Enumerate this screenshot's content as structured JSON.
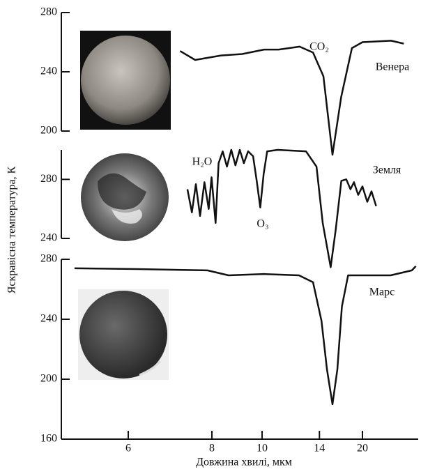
{
  "chart_data": [
    {
      "type": "line",
      "ylim": [
        200,
        280
      ],
      "yticks": [
        200,
        240,
        280
      ],
      "xscale": "reciprocal",
      "xlim": [
        5,
        45
      ],
      "x": [
        7.1,
        7.5,
        8.3,
        9.1,
        10.1,
        10.9,
        12.3,
        13.4,
        14.4,
        15.4,
        16.5,
        18.1,
        20,
        28,
        34
      ],
      "series": [
        {
          "name": "Венера",
          "color": "#111111",
          "values": [
            254,
            248,
            251,
            252,
            255,
            255,
            257,
            253,
            237,
            184,
            223,
            256,
            260,
            261,
            259
          ]
        }
      ],
      "annotations": [
        "CO₂"
      ]
    },
    {
      "type": "line",
      "ylim": [
        240,
        300
      ],
      "yticks": [
        240,
        280
      ],
      "xscale": "reciprocal",
      "xlim": [
        5,
        45
      ],
      "ylabel": "Яскравісна температура, К",
      "x": [
        7.29,
        7.41,
        7.52,
        7.64,
        7.77,
        7.9,
        7.99,
        8.12,
        8.22,
        8.36,
        8.51,
        8.67,
        8.83,
        9.0,
        9.17,
        9.35,
        9.57,
        9.74,
        9.91,
        10.08,
        10.26,
        10.84,
        12.8,
        13.72,
        14.33,
        15.19,
        15.79,
        16.52,
        17.22,
        17.87,
        18.44,
        19.19,
        20.0,
        21.0,
        21.99,
        23.16
      ],
      "series": [
        {
          "name": "Земля",
          "color": "#111111",
          "values": [
            273.3,
            257.6,
            276.7,
            255.2,
            278.1,
            260,
            281.4,
            250.5,
            291,
            299,
            288.6,
            300,
            289.5,
            300,
            291,
            299,
            295.7,
            279,
            261,
            283.8,
            299,
            300,
            299,
            288.6,
            250.5,
            220.5,
            245.7,
            279,
            280,
            273.3,
            278.1,
            269.5,
            275.2,
            264.8,
            271.9,
            261.9
          ]
        }
      ],
      "annotations": [
        "H₂O",
        "O₃"
      ]
    },
    {
      "type": "line",
      "ylim": [
        160,
        280
      ],
      "yticks": [
        160,
        200,
        240,
        280
      ],
      "xscale": "reciprocal",
      "xlim": [
        5,
        45
      ],
      "xticks": [
        6,
        8,
        10,
        14,
        20
      ],
      "xlabel": "Довжина хвилі, мкм",
      "x": [
        5.17,
        6.16,
        7.86,
        8.57,
        10.08,
        12.25,
        13.4,
        14.2,
        14.78,
        15.4,
        16.0,
        16.6,
        17.5,
        27.8,
        39.4,
        42.7
      ],
      "series": [
        {
          "name": "Марс",
          "color": "#111111",
          "values": [
            274,
            273.5,
            272.6,
            269.3,
            270.2,
            269.3,
            264.7,
            239,
            206.5,
            183.3,
            206.5,
            248.4,
            269.3,
            269.3,
            272.6,
            275.4
          ]
        }
      ],
      "annotations": []
    }
  ]
}
